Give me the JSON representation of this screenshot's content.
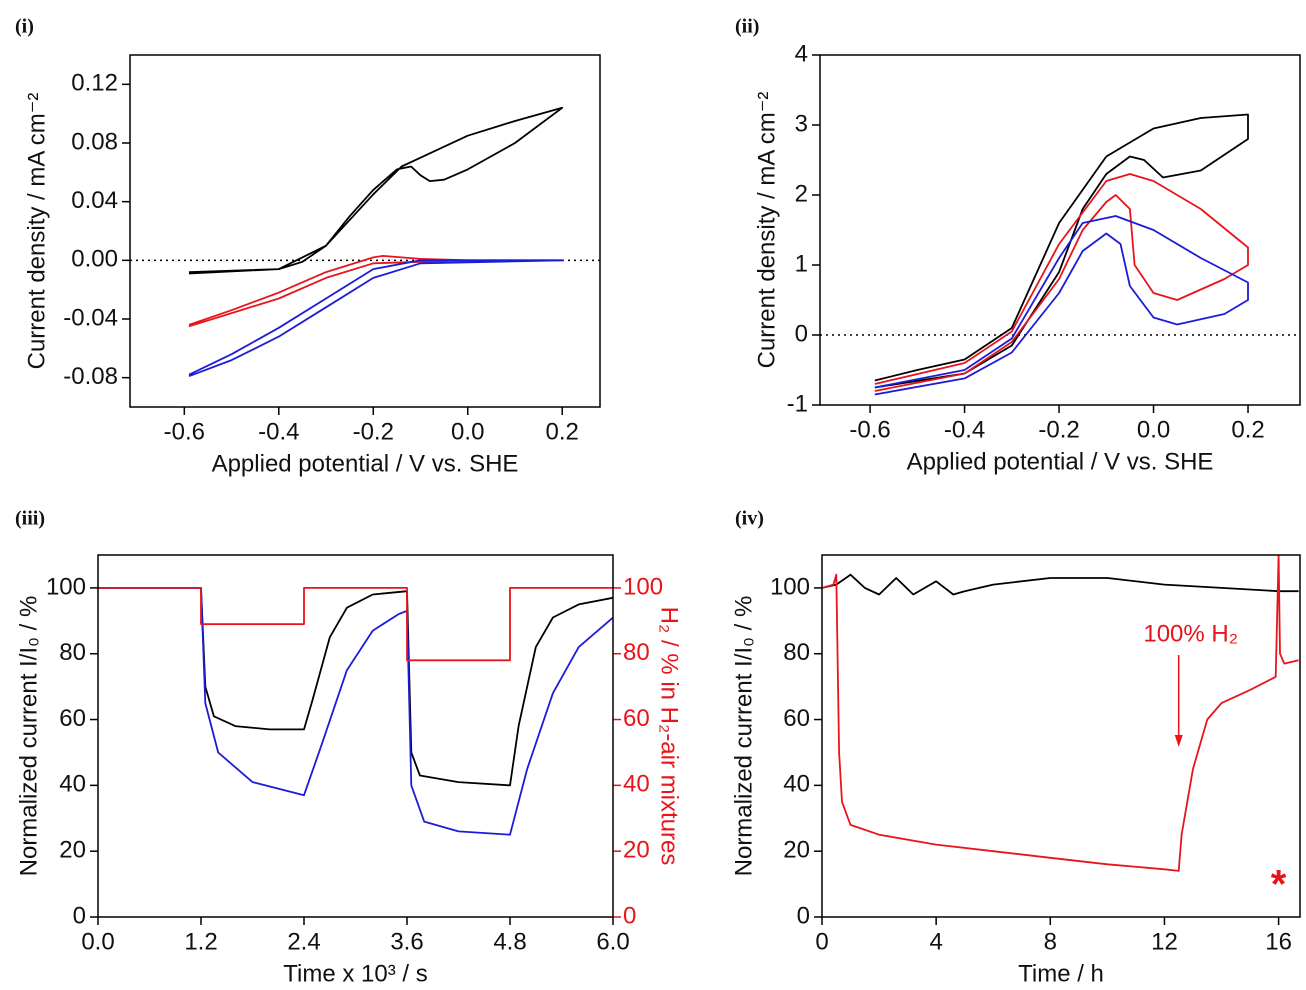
{
  "chart_data": [
    {
      "type": "line",
      "panel": "(i)",
      "xlabel": "Applied potential / V vs. SHE",
      "ylabel": "Current density / mA cm⁻²",
      "xlim": [
        -0.715,
        0.28
      ],
      "ylim": [
        -0.1,
        0.14
      ],
      "xticks": [
        -0.6,
        -0.4,
        -0.2,
        {
          "value": 0,
          "label": "0.0"
        },
        0.2
      ],
      "yticks": [
        -0.08,
        -0.04,
        {
          "value": 0,
          "label": "0.00"
        },
        0.04,
        0.08,
        0.12
      ],
      "zero_line": true,
      "series": [
        {
          "name": "black",
          "color": "#000000",
          "x": [
            -0.59,
            -0.4,
            -0.35,
            -0.3,
            -0.25,
            -0.2,
            -0.15,
            -0.12,
            -0.1,
            -0.08,
            -0.05,
            0,
            0.1,
            0.2,
            0.1,
            0,
            -0.1,
            -0.14,
            -0.2,
            -0.3,
            -0.4,
            -0.59
          ],
          "values": [
            -0.009,
            -0.006,
            -0.001,
            0.01,
            0.03,
            0.048,
            0.062,
            0.064,
            0.058,
            0.054,
            0.055,
            0.062,
            0.08,
            0.104,
            0.095,
            0.085,
            0.07,
            0.064,
            0.045,
            0.01,
            -0.006,
            -0.008
          ]
        },
        {
          "name": "red",
          "color": "#e8141b",
          "x": [
            -0.59,
            -0.5,
            -0.4,
            -0.3,
            -0.2,
            -0.18,
            -0.1,
            0,
            0.2,
            0,
            -0.1,
            -0.2,
            -0.3,
            -0.4,
            -0.5,
            -0.59
          ],
          "values": [
            -0.044,
            -0.034,
            -0.022,
            -0.008,
            0.002,
            0.003,
            0.001,
            0,
            0,
            0,
            -0.001,
            -0.002,
            -0.012,
            -0.026,
            -0.036,
            -0.045
          ]
        },
        {
          "name": "blue",
          "color": "#1c1cd8",
          "x": [
            -0.59,
            -0.5,
            -0.4,
            -0.3,
            -0.2,
            -0.1,
            0.2,
            -0.1,
            -0.2,
            -0.3,
            -0.4,
            -0.5,
            -0.59
          ],
          "values": [
            -0.078,
            -0.064,
            -0.046,
            -0.026,
            -0.006,
            0,
            0,
            -0.002,
            -0.012,
            -0.032,
            -0.052,
            -0.068,
            -0.079
          ]
        }
      ]
    },
    {
      "type": "line",
      "panel": "(ii)",
      "xlabel": "Applied potential / V vs. SHE",
      "ylabel": "Current density / mA cm⁻²",
      "xlim": [
        -0.706,
        0.31
      ],
      "ylim": [
        -1,
        4
      ],
      "xticks": [
        -0.6,
        -0.4,
        -0.2,
        {
          "value": 0,
          "label": "0.0"
        },
        0.2
      ],
      "yticks": [
        -1,
        0,
        1,
        2,
        3,
        4
      ],
      "zero_line": true,
      "series": [
        {
          "name": "black",
          "color": "#000000",
          "x": [
            -0.59,
            -0.4,
            -0.3,
            -0.2,
            -0.15,
            -0.1,
            -0.05,
            -0.02,
            0.02,
            0.1,
            0.2,
            0.2,
            0.1,
            0,
            -0.1,
            -0.2,
            -0.3,
            -0.4,
            -0.5,
            -0.59
          ],
          "values": [
            -0.75,
            -0.55,
            -0.15,
            0.9,
            1.8,
            2.3,
            2.55,
            2.5,
            2.25,
            2.35,
            2.8,
            3.15,
            3.1,
            2.95,
            2.55,
            1.6,
            0.1,
            -0.35,
            -0.5,
            -0.65
          ]
        },
        {
          "name": "red",
          "color": "#e8141b",
          "x": [
            -0.59,
            -0.4,
            -0.3,
            -0.2,
            -0.15,
            -0.1,
            -0.08,
            -0.05,
            -0.04,
            0,
            0.05,
            0.15,
            0.2,
            0.2,
            0.1,
            0,
            -0.05,
            -0.1,
            -0.2,
            -0.3,
            -0.4,
            -0.59
          ],
          "values": [
            -0.8,
            -0.55,
            -0.1,
            0.8,
            1.5,
            1.9,
            2.0,
            1.8,
            1.0,
            0.6,
            0.5,
            0.8,
            1.0,
            1.25,
            1.8,
            2.2,
            2.3,
            2.2,
            1.3,
            0.05,
            -0.4,
            -0.7
          ]
        },
        {
          "name": "blue",
          "color": "#1c1cd8",
          "x": [
            -0.59,
            -0.4,
            -0.3,
            -0.2,
            -0.15,
            -0.1,
            -0.07,
            -0.05,
            0,
            0.05,
            0.15,
            0.2,
            0.2,
            0.1,
            0,
            -0.08,
            -0.15,
            -0.2,
            -0.3,
            -0.4,
            -0.59
          ],
          "values": [
            -0.85,
            -0.62,
            -0.25,
            0.6,
            1.2,
            1.45,
            1.3,
            0.7,
            0.25,
            0.15,
            0.3,
            0.5,
            0.75,
            1.1,
            1.5,
            1.7,
            1.6,
            1.1,
            -0.05,
            -0.5,
            -0.75
          ]
        }
      ]
    },
    {
      "type": "line",
      "panel": "(iii)",
      "xlabel": "Time x 10³ / s",
      "ylabel": "Normalized current I/I₀ / %",
      "y2label": "H₂ / % in H₂-air mixtures",
      "xlim": [
        0,
        6
      ],
      "ylim": [
        0,
        110
      ],
      "y2lim": [
        0,
        110
      ],
      "xticks": [
        {
          "value": 0,
          "label": "0.0"
        },
        1.2,
        2.4,
        3.6,
        4.8,
        {
          "value": 6,
          "label": "6.0"
        }
      ],
      "yticks": [
        0,
        20,
        40,
        60,
        80,
        100
      ],
      "y2ticks": [
        0,
        20,
        40,
        60,
        80,
        100
      ],
      "series": [
        {
          "name": "black",
          "color": "#000000",
          "x": [
            0,
            1.2,
            1.25,
            1.35,
            1.6,
            2.0,
            2.4,
            2.5,
            2.7,
            2.9,
            3.2,
            3.6,
            3.65,
            3.75,
            4.2,
            4.8,
            4.9,
            5.1,
            5.3,
            5.6,
            6.0
          ],
          "values": [
            100,
            100,
            70,
            61,
            58,
            57,
            57,
            66,
            85,
            94,
            98,
            99,
            50,
            43,
            41,
            40,
            58,
            82,
            91,
            95,
            97
          ]
        },
        {
          "name": "blue",
          "color": "#1c1cd8",
          "x": [
            0,
            1.2,
            1.25,
            1.4,
            1.8,
            2.4,
            2.6,
            2.9,
            3.2,
            3.5,
            3.6,
            3.65,
            3.8,
            4.2,
            4.8,
            5.0,
            5.3,
            5.6,
            6.0
          ],
          "values": [
            100,
            100,
            65,
            50,
            41,
            37,
            52,
            75,
            87,
            92,
            93,
            40,
            29,
            26,
            25,
            45,
            68,
            82,
            91
          ]
        },
        {
          "name": "red",
          "color": "#e8141b",
          "axis": "y2",
          "x": [
            0,
            1.2,
            1.2,
            2.4,
            2.4,
            3.6,
            3.6,
            4.8,
            4.8,
            6
          ],
          "values": [
            100,
            100,
            89,
            89,
            100,
            100,
            78,
            78,
            100,
            100
          ]
        }
      ]
    },
    {
      "type": "line",
      "panel": "(iv)",
      "xlabel": "Time / h",
      "ylabel": "Normalized current I/I₀ / %",
      "xlim": [
        0,
        16.75
      ],
      "ylim": [
        0,
        110
      ],
      "xticks": [
        0,
        4,
        8,
        12,
        16
      ],
      "yticks": [
        0,
        20,
        40,
        60,
        80,
        100
      ],
      "annotations": [
        "100% H₂",
        "*"
      ],
      "series": [
        {
          "name": "black",
          "color": "#000000",
          "x": [
            0,
            0.5,
            1,
            1.5,
            2,
            2.6,
            3.2,
            4,
            4.6,
            5,
            6,
            8,
            10,
            12,
            14,
            16,
            16.7
          ],
          "values": [
            100,
            101,
            104,
            100,
            98,
            103,
            98,
            102,
            98,
            99,
            101,
            103,
            103,
            101,
            100,
            99,
            99
          ]
        },
        {
          "name": "red",
          "color": "#e8141b",
          "x": [
            0,
            0.4,
            0.5,
            0.6,
            0.7,
            1,
            2,
            4,
            6,
            8,
            10,
            12,
            12.5,
            12.6,
            13,
            13.5,
            14,
            15,
            15.9,
            16,
            16.05,
            16.2,
            16.7
          ],
          "values": [
            100,
            101,
            104,
            50,
            35,
            28,
            25,
            22,
            20,
            18,
            16,
            14.5,
            14,
            25,
            45,
            60,
            65,
            69,
            73,
            110,
            80,
            77,
            78
          ]
        }
      ]
    }
  ]
}
